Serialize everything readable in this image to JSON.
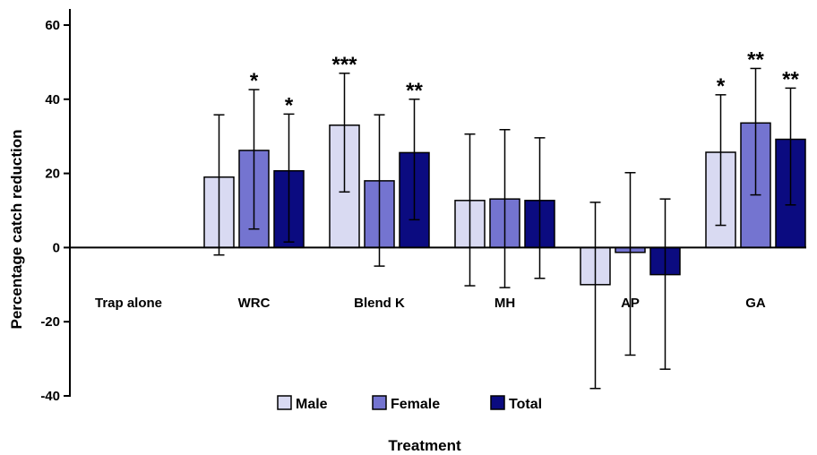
{
  "chart_data": {
    "type": "bar",
    "title": "",
    "xlabel": "Treatment",
    "ylabel": "Percentage catch reduction",
    "ylim": [
      -40,
      60
    ],
    "yticks": [
      60,
      40,
      20,
      0,
      -20,
      -40
    ],
    "grid": false,
    "legend_position": "bottom",
    "categories": [
      "Trap alone",
      "WRC",
      "Blend K",
      "MH",
      "AP",
      "GA"
    ],
    "series": [
      {
        "name": "Male",
        "color": "#d9daf2",
        "values": [
          0,
          19,
          33,
          12.7,
          -10,
          25.7
        ],
        "error": [
          [
            0,
            0
          ],
          [
            -2,
            35.8
          ],
          [
            15,
            47
          ],
          [
            -10.3,
            30.6
          ],
          [
            -38,
            12.2
          ],
          [
            6,
            41.2
          ]
        ],
        "significance": [
          "",
          "",
          "***",
          "",
          "",
          "*"
        ]
      },
      {
        "name": "Female",
        "color": "#7474d0",
        "values": [
          0,
          26.2,
          18,
          13.1,
          -1.3,
          33.6
        ],
        "error": [
          [
            0,
            0
          ],
          [
            5,
            42.6
          ],
          [
            -5,
            35.8
          ],
          [
            -10.8,
            31.8
          ],
          [
            -29,
            20.2
          ],
          [
            14.2,
            48.3
          ]
        ],
        "significance": [
          "",
          "*",
          "",
          "",
          "",
          "**"
        ]
      },
      {
        "name": "Total",
        "color": "#0b0b80",
        "values": [
          0,
          20.7,
          25.6,
          12.7,
          -7.3,
          29.2
        ],
        "error": [
          [
            0,
            0
          ],
          [
            1.5,
            36
          ],
          [
            7.5,
            40
          ],
          [
            -8.3,
            29.6
          ],
          [
            -32.8,
            13.1
          ],
          [
            11.5,
            43
          ]
        ],
        "significance": [
          "",
          "*",
          "**",
          "",
          "",
          "**"
        ]
      }
    ]
  }
}
